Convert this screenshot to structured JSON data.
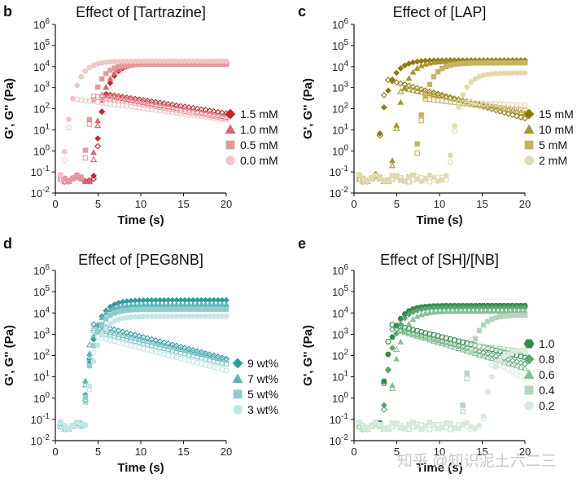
{
  "watermark": "知乎 @知识泥土六二三",
  "chart_data": [
    {
      "type": "scatter",
      "panel": "b",
      "title": "Effect of [Tartrazine]",
      "xlabel": "Time (s)",
      "ylabel": "G', G'' (Pa)",
      "xlim": [
        0,
        20
      ],
      "ylim_log10": [
        -2,
        6
      ],
      "xticks": [
        "0",
        "5",
        "10",
        "15",
        "20"
      ],
      "yticks": [
        "10-2",
        "10-1",
        "100",
        "101",
        "102",
        "103",
        "104",
        "105",
        "106"
      ],
      "legend_position": "right",
      "note": "filled markers = G', open markers = G''",
      "series": [
        {
          "name": "1.5 mM",
          "marker": "diamond",
          "color": "#c0282e",
          "onset_s": 4.5,
          "gp_plateau": 15000,
          "gpp_peak": 500,
          "gpp_end": 60
        },
        {
          "name": "1.0 mM",
          "marker": "triangle",
          "color": "#d9646a",
          "onset_s": 4.2,
          "gp_plateau": 14000,
          "gpp_peak": 450,
          "gpp_end": 40
        },
        {
          "name": "0.5 mM",
          "marker": "square",
          "color": "#e5999b",
          "onset_s": 3.2,
          "gp_plateau": 13000,
          "gpp_peak": 400,
          "gpp_end": 35
        },
        {
          "name": "0.0 mM",
          "marker": "circle",
          "color": "#f2c6c8",
          "onset_s": 0.8,
          "gp_plateau": 18000,
          "gpp_peak": 300,
          "gpp_end": 30
        }
      ]
    },
    {
      "type": "scatter",
      "panel": "c",
      "title": "Effect of [LAP]",
      "xlabel": "Time (s)",
      "ylabel": "G', G'' (Pa)",
      "xlim": [
        0,
        20
      ],
      "ylim_log10": [
        -2,
        6
      ],
      "xticks": [
        "0",
        "5",
        "10",
        "15",
        "20"
      ],
      "yticks": [
        "10-2",
        "10-1",
        "100",
        "101",
        "102",
        "103",
        "104",
        "105",
        "106"
      ],
      "legend_position": "right",
      "note": "filled markers = G', open markers = G''",
      "series": [
        {
          "name": "15 mM",
          "marker": "diamond",
          "color": "#8c7a10",
          "onset_s": 2.5,
          "gp_plateau": 20000,
          "gpp_peak": 2500,
          "gpp_end": 35
        },
        {
          "name": "10 mM",
          "marker": "triangle",
          "color": "#a8962a",
          "onset_s": 4.3,
          "gp_plateau": 18000,
          "gpp_peak": 1000,
          "gpp_end": 60
        },
        {
          "name": "5 mM",
          "marker": "square",
          "color": "#c5b465",
          "onset_s": 7.0,
          "gp_plateau": 15000,
          "gpp_peak": 300,
          "gpp_end": 80
        },
        {
          "name": "2 mM",
          "marker": "circle",
          "color": "#e2daae",
          "onset_s": 11.0,
          "gp_plateau": 5000,
          "gpp_peak": 200,
          "gpp_end": 150
        }
      ]
    },
    {
      "type": "scatter",
      "panel": "d",
      "title": "Effect of [PEG8NB]",
      "xlabel": "Time (s)",
      "ylabel": "G', G'' (Pa)",
      "xlim": [
        0,
        20
      ],
      "ylim_log10": [
        -2,
        6
      ],
      "xticks": [
        "0",
        "5",
        "10",
        "15",
        "20"
      ],
      "yticks": [
        "10-2",
        "10-1",
        "100",
        "101",
        "102",
        "103",
        "104",
        "105",
        "106"
      ],
      "legend_position": "bottom-right",
      "note": "filled markers = G', open markers = G''",
      "series": [
        {
          "name": "9 wt%",
          "marker": "diamond",
          "color": "#2f9c9c",
          "onset_s": 3.2,
          "gp_plateau": 40000,
          "gpp_peak": 3000,
          "gpp_end": 70
        },
        {
          "name": "7 wt%",
          "marker": "triangle",
          "color": "#5fb6b6",
          "onset_s": 3.0,
          "gp_plateau": 25000,
          "gpp_peak": 2000,
          "gpp_end": 60
        },
        {
          "name": "5 wt%",
          "marker": "square",
          "color": "#8fcdcd",
          "onset_s": 3.2,
          "gp_plateau": 15000,
          "gpp_peak": 1500,
          "gpp_end": 40
        },
        {
          "name": "3 wt%",
          "marker": "circle",
          "color": "#c3e6e6",
          "onset_s": 3.5,
          "gp_plateau": 7000,
          "gpp_peak": 800,
          "gpp_end": 20
        }
      ]
    },
    {
      "type": "scatter",
      "panel": "e",
      "title": "Effect of [SH]/[NB]",
      "xlabel": "Time (s)",
      "ylabel": "G', G'' (Pa)",
      "xlim": [
        0,
        20
      ],
      "ylim_log10": [
        -2,
        6
      ],
      "xticks": [
        "0",
        "5",
        "10",
        "15",
        "20"
      ],
      "yticks": [
        "10-2",
        "10-1",
        "100",
        "101",
        "102",
        "103",
        "104",
        "105",
        "106"
      ],
      "legend_position": "right",
      "note": "filled markers = G', open markers = G''",
      "series": [
        {
          "name": "1.0",
          "marker": "hexagon",
          "color": "#2e8b4a",
          "onset_s": 3.0,
          "gp_plateau": 22000,
          "gpp_peak": 3000,
          "gpp_end": 80
        },
        {
          "name": "0.8",
          "marker": "diamond",
          "color": "#5aa670",
          "onset_s": 3.3,
          "gp_plateau": 18000,
          "gpp_peak": 2000,
          "gpp_end": 40
        },
        {
          "name": "0.6",
          "marker": "triangle",
          "color": "#88bf96",
          "onset_s": 4.0,
          "gp_plateau": 12000,
          "gpp_peak": 1500,
          "gpp_end": 25
        },
        {
          "name": "0.4",
          "marker": "square",
          "color": "#b3d6bb",
          "onset_s": 12.5,
          "gp_plateau": 8000,
          "gpp_peak": 300,
          "gpp_end": 150
        },
        {
          "name": "0.2",
          "marker": "circle",
          "color": "#d8eadb",
          "onset_s": 15.0,
          "gp_plateau": 200,
          "gpp_peak": 60,
          "gpp_end": 8
        }
      ]
    }
  ]
}
